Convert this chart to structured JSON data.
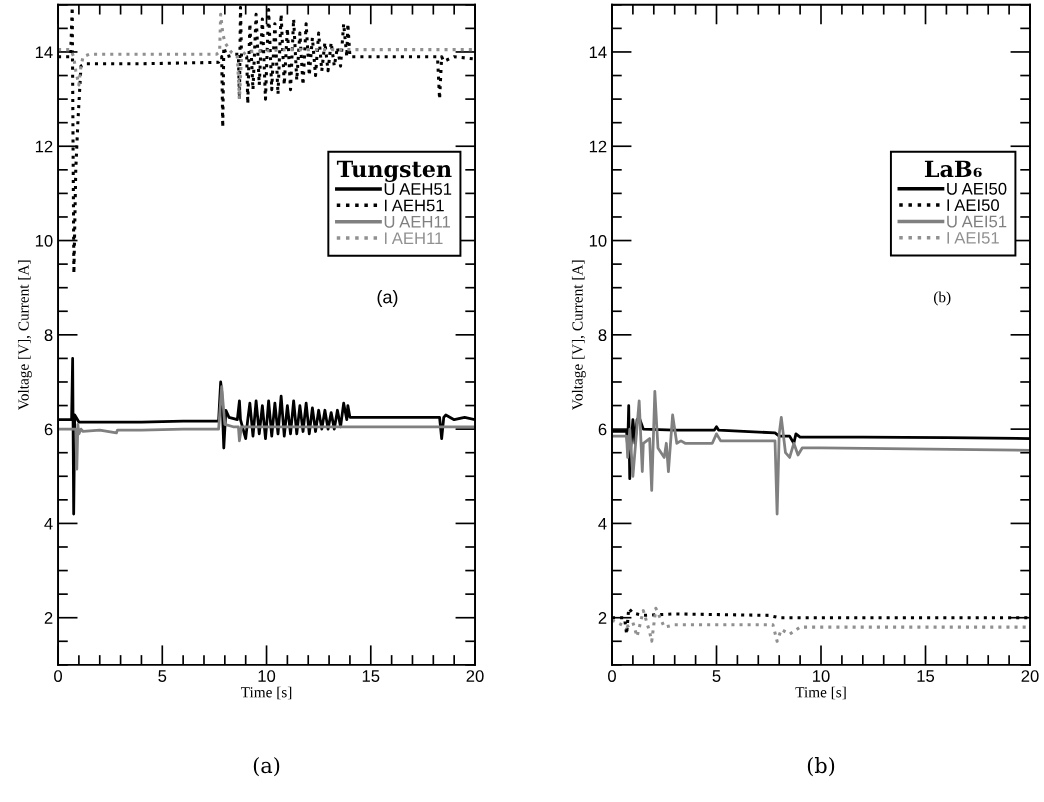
{
  "chart_data": [
    {
      "type": "line",
      "xlabel": "Time [s]",
      "ylabel": "Voltage [V], Current [A]",
      "legend_title": "Tungsten",
      "legend": "top right",
      "xlim": [
        0,
        20
      ],
      "ylim": [
        1,
        15
      ],
      "xticks": [
        0,
        5,
        10,
        15,
        20
      ],
      "yticks": [
        2,
        4,
        6,
        8,
        10,
        12,
        14
      ],
      "grid": false,
      "annotations": [
        "(a)",
        "(a)"
      ],
      "series": [
        {
          "name": "U AEH51",
          "color": "#000000",
          "line_style": "solid",
          "x": [
            0,
            0.65,
            0.7,
            0.72,
            0.75,
            0.8,
            1.0,
            2,
            4,
            6,
            7.7,
            7.8,
            7.85,
            7.95,
            8.05,
            8.2,
            8.6,
            8.7,
            8.75,
            9.0,
            9.1,
            9.2,
            9.35,
            9.5,
            9.65,
            9.8,
            9.95,
            10.1,
            10.25,
            10.4,
            10.55,
            10.7,
            10.85,
            11.0,
            11.15,
            11.3,
            11.45,
            11.6,
            11.75,
            11.9,
            12.05,
            12.2,
            12.35,
            12.5,
            12.65,
            12.8,
            12.95,
            13.1,
            13.25,
            13.4,
            13.55,
            13.7,
            13.85,
            13.9,
            14.0,
            16,
            18.3,
            18.4,
            18.5,
            18.6,
            19,
            19.5,
            20
          ],
          "values": [
            6.2,
            6.2,
            7.5,
            6.2,
            4.2,
            6.3,
            6.15,
            6.15,
            6.15,
            6.17,
            6.17,
            7.0,
            6.8,
            5.6,
            6.4,
            6.25,
            6.2,
            6.6,
            6.2,
            5.8,
            6.2,
            6.55,
            5.85,
            6.6,
            5.9,
            6.5,
            5.8,
            6.6,
            5.85,
            6.55,
            5.9,
            6.7,
            5.85,
            6.5,
            5.9,
            6.6,
            5.9,
            6.5,
            5.95,
            6.55,
            5.9,
            6.45,
            5.95,
            6.4,
            6.0,
            6.4,
            6.0,
            6.35,
            6.0,
            6.4,
            6.05,
            6.55,
            6.2,
            6.5,
            6.25,
            6.25,
            6.25,
            5.8,
            6.25,
            6.3,
            6.2,
            6.25,
            6.2
          ]
        },
        {
          "name": "I AEH51",
          "color": "#000000",
          "line_style": "dotted",
          "x": [
            0,
            0.6,
            0.68,
            0.72,
            0.76,
            0.85,
            0.95,
            1.1,
            1.3,
            4,
            7.7,
            7.85,
            7.9,
            7.95,
            8.1,
            8.5,
            8.65,
            8.7,
            8.75,
            8.8,
            9.05,
            9.1,
            9.2,
            9.35,
            9.5,
            9.65,
            9.8,
            9.95,
            10.1,
            10.25,
            10.4,
            10.55,
            10.7,
            10.85,
            11.0,
            11.15,
            11.3,
            11.45,
            11.6,
            11.75,
            11.9,
            12.05,
            12.2,
            12.35,
            12.5,
            12.65,
            12.8,
            12.95,
            13.1,
            13.25,
            13.4,
            13.55,
            13.7,
            13.85,
            13.9,
            14.0,
            16,
            18.2,
            18.3,
            18.4,
            18.5,
            19,
            20
          ],
          "values": [
            13.9,
            13.9,
            14.95,
            12.0,
            9.3,
            11.5,
            12.5,
            13.7,
            13.75,
            13.75,
            13.78,
            13.9,
            12.4,
            14.1,
            13.9,
            13.95,
            13.95,
            13.0,
            14.95,
            13.9,
            13.9,
            12.9,
            14.6,
            13.2,
            14.8,
            13.3,
            14.7,
            13.0,
            14.9,
            13.2,
            14.6,
            13.1,
            14.8,
            13.3,
            14.5,
            13.2,
            14.7,
            13.4,
            14.4,
            13.3,
            14.6,
            13.5,
            14.3,
            13.5,
            14.4,
            13.6,
            14.2,
            13.6,
            14.2,
            13.7,
            14.1,
            13.7,
            14.6,
            13.9,
            14.6,
            13.9,
            13.9,
            13.9,
            13.0,
            13.9,
            13.8,
            13.9,
            13.85
          ]
        },
        {
          "name": "U AEH11",
          "color": "#808080",
          "line_style": "solid",
          "x": [
            0,
            0.85,
            0.9,
            0.95,
            1.0,
            1.1,
            1.2,
            2,
            2.8,
            2.85,
            4,
            6,
            7.7,
            7.85,
            8.0,
            8.4,
            8.65,
            8.7,
            8.8,
            9.0,
            10,
            12,
            14,
            16,
            18,
            20
          ],
          "values": [
            6.0,
            6.0,
            5.15,
            6.1,
            5.9,
            6.0,
            5.95,
            5.98,
            5.92,
            5.98,
            5.98,
            6.0,
            6.0,
            6.9,
            6.1,
            6.05,
            6.05,
            5.75,
            6.05,
            6.05,
            6.05,
            6.05,
            6.05,
            6.05,
            6.05,
            6.05
          ]
        },
        {
          "name": "I AEH11",
          "color": "#909090",
          "line_style": "dotted",
          "x": [
            0,
            0.6,
            0.75,
            0.85,
            1.0,
            1.1,
            1.2,
            1.5,
            3,
            5,
            7.6,
            7.75,
            7.8,
            7.9,
            8.0,
            8.3,
            8.6,
            8.7,
            8.8,
            9.0,
            11,
            14,
            17,
            20
          ],
          "values": [
            14.05,
            14.05,
            13.9,
            13.6,
            13.3,
            13.7,
            13.9,
            13.95,
            13.95,
            13.95,
            13.95,
            14.0,
            14.8,
            14.4,
            14.2,
            14.0,
            13.9,
            13.0,
            13.9,
            14.0,
            14.05,
            14.05,
            14.05,
            14.05
          ]
        }
      ]
    },
    {
      "type": "line",
      "xlabel": "Time [s]",
      "ylabel": "Voltage [V], Current [A]",
      "legend_title": "LaB₆",
      "legend": "top right",
      "xlim": [
        0,
        20
      ],
      "ylim": [
        1,
        15
      ],
      "xticks": [
        0,
        5,
        10,
        15,
        20
      ],
      "yticks": [
        2,
        4,
        6,
        8,
        10,
        12,
        14
      ],
      "grid": false,
      "annotations": [
        "(b)",
        "(b)"
      ],
      "series": [
        {
          "name": "U AEI50",
          "color": "#000000",
          "line_style": "solid",
          "x": [
            0,
            0.7,
            0.75,
            0.8,
            0.85,
            0.9,
            1.0,
            1.1,
            1.2,
            1.3,
            1.5,
            3,
            4.9,
            5.0,
            5.1,
            7.8,
            8.0,
            8.5,
            8.7,
            8.8,
            9.0,
            12,
            16,
            20
          ],
          "values": [
            5.95,
            5.95,
            5.6,
            6.5,
            4.95,
            5.6,
            6.2,
            5.7,
            6.2,
            6.25,
            6.0,
            5.98,
            5.98,
            6.05,
            5.98,
            5.92,
            5.85,
            5.85,
            5.7,
            5.9,
            5.83,
            5.83,
            5.82,
            5.8
          ]
        },
        {
          "name": "I AEI50",
          "color": "#000000",
          "line_style": "dotted",
          "x": [
            0,
            0.6,
            0.7,
            0.8,
            1.0,
            1.5,
            3,
            7.5,
            8,
            20
          ],
          "values": [
            2.0,
            2.0,
            1.65,
            2.2,
            2.1,
            2.05,
            2.08,
            2.05,
            2.0,
            2.0
          ]
        },
        {
          "name": "U AEI51",
          "color": "#808080",
          "line_style": "solid",
          "x": [
            0,
            0.7,
            0.75,
            0.85,
            1.0,
            1.3,
            1.45,
            1.5,
            1.8,
            1.9,
            2.05,
            2.2,
            2.5,
            2.6,
            2.7,
            2.9,
            3.1,
            3.3,
            3.5,
            4.8,
            5.0,
            5.2,
            7.8,
            7.9,
            8.0,
            8.1,
            8.3,
            8.5,
            8.7,
            8.9,
            9.1,
            10,
            20
          ],
          "values": [
            5.85,
            5.85,
            5.4,
            6.0,
            5.0,
            6.6,
            5.1,
            5.7,
            5.8,
            4.7,
            6.8,
            5.6,
            5.4,
            5.7,
            5.1,
            6.3,
            5.7,
            5.75,
            5.7,
            5.7,
            5.9,
            5.75,
            5.75,
            4.2,
            5.9,
            6.25,
            5.5,
            5.4,
            5.7,
            5.45,
            5.6,
            5.6,
            5.55
          ]
        },
        {
          "name": "I AEI51",
          "color": "#909090",
          "line_style": "dotted",
          "x": [
            0,
            0.7,
            1.0,
            1.2,
            1.5,
            1.8,
            1.9,
            2.1,
            2.5,
            3,
            7.7,
            7.9,
            8.1,
            8.5,
            9,
            20
          ],
          "values": [
            1.95,
            1.8,
            1.9,
            1.6,
            2.15,
            1.7,
            1.5,
            2.2,
            1.8,
            1.85,
            1.85,
            1.5,
            1.75,
            1.65,
            1.8,
            1.8
          ]
        }
      ]
    }
  ]
}
